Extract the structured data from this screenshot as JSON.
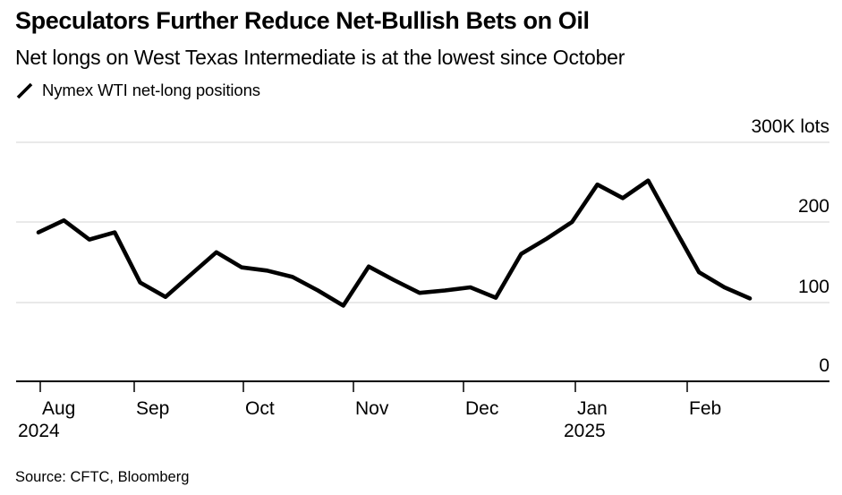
{
  "header": {
    "title": "Speculators Further Reduce Net-Bullish Bets on Oil",
    "subtitle": "Net longs on West Texas Intermediate is at the lowest since October"
  },
  "legend": {
    "icon": "line-slash-icon",
    "label": "Nymex WTI net-long positions"
  },
  "chart_data": {
    "type": "line",
    "title": "Speculators Further Reduce Net-Bullish Bets on Oil",
    "subtitle": "Net longs on West Texas Intermediate is at the lowest since October",
    "frequency": "weekly",
    "x_range": [
      "Aug 2024",
      "Feb 2025"
    ],
    "series": [
      {
        "name": "Nymex WTI net-long positions",
        "values": [
          187,
          202,
          178,
          187,
          124,
          106,
          134,
          162,
          143,
          139,
          131,
          114,
          95,
          144,
          127,
          111,
          114,
          118,
          105,
          160,
          179,
          200,
          247,
          230,
          252,
          194,
          137,
          118,
          104
        ]
      }
    ],
    "unit": "K lots",
    "ylim": [
      0,
      300
    ],
    "y_ticks": [
      {
        "value": 300,
        "label": "300K lots"
      },
      {
        "value": 200,
        "label": "200"
      },
      {
        "value": 100,
        "label": "100"
      },
      {
        "value": 0,
        "label": "0"
      }
    ],
    "x_ticks": [
      "Aug",
      "Sep",
      "Oct",
      "Nov",
      "Dec",
      "Jan",
      "Feb"
    ],
    "year_markers": [
      {
        "label": "2024",
        "under": "Aug"
      },
      {
        "label": "2025",
        "under": "Jan"
      }
    ],
    "line_color": "#000000",
    "grid_color": "#e2e2e2",
    "grid": true,
    "legend_position": "top-left"
  },
  "source": "Source: CFTC, Bloomberg"
}
